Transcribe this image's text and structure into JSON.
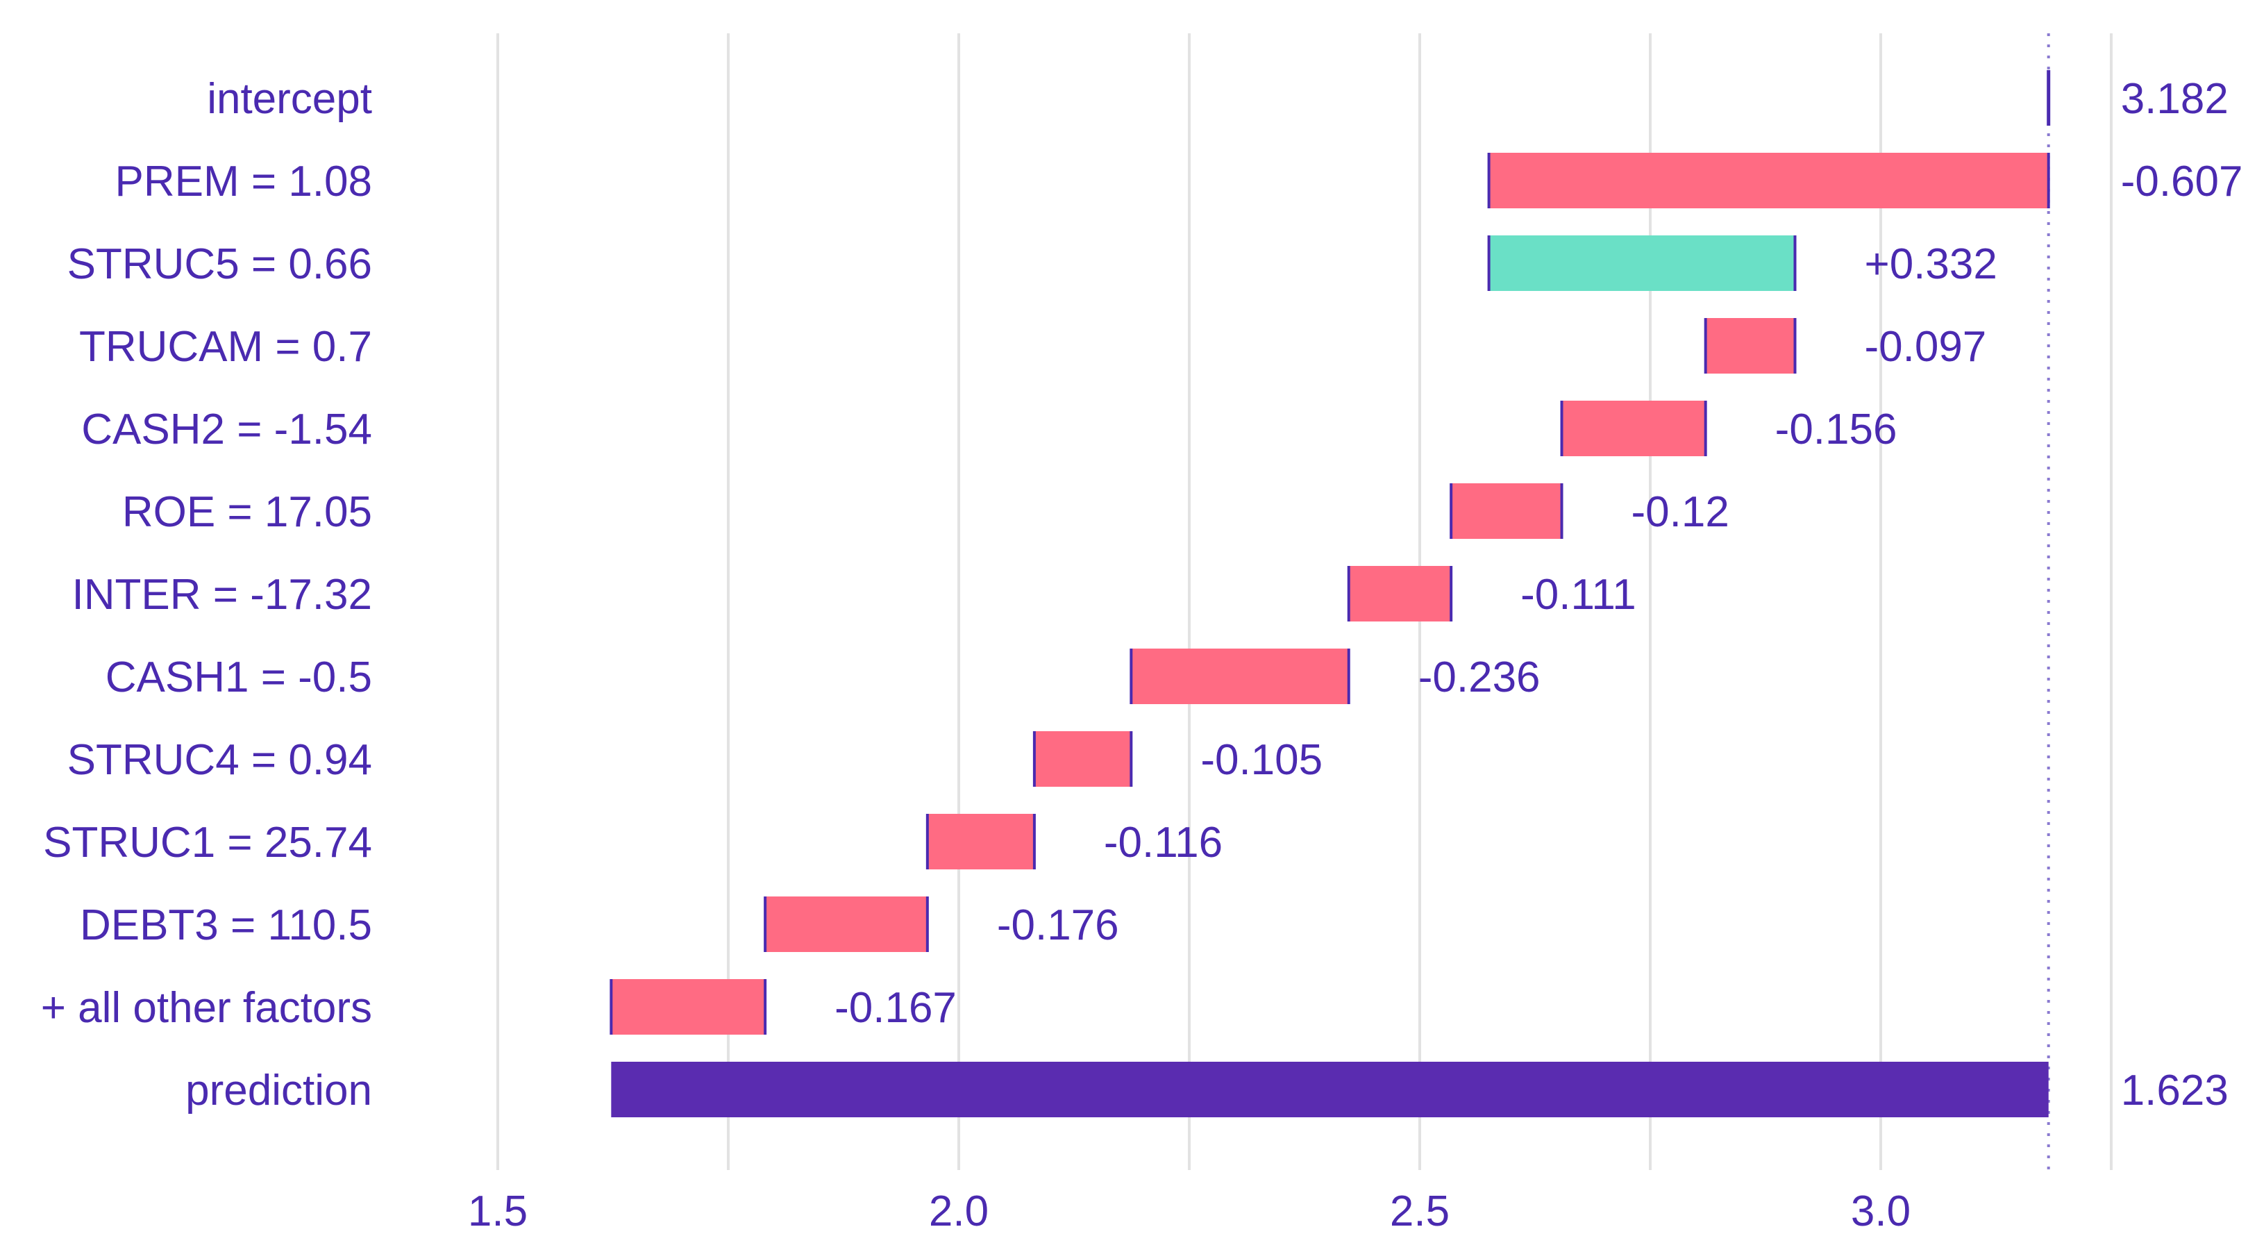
{
  "chart_data": {
    "type": "waterfall",
    "title": "",
    "xlabel": "",
    "ylabel": "",
    "xlim": [
      1.5,
      3.25
    ],
    "x_ticks": [
      1.5,
      2.0,
      2.5,
      3.0
    ],
    "x_tick_labels": [
      "1.5",
      "2.0",
      "2.5",
      "3.0"
    ],
    "intercept": 3.182,
    "prediction": 1.623,
    "rows": [
      {
        "label": "intercept",
        "kind": "intercept",
        "value": 3.182,
        "value_label": "3.182"
      },
      {
        "label": "PREM = 1.08",
        "kind": "contribution",
        "value": -0.607,
        "value_label": "-0.607"
      },
      {
        "label": "STRUC5 = 0.66",
        "kind": "contribution",
        "value": 0.332,
        "value_label": "+0.332"
      },
      {
        "label": "TRUCAM = 0.7",
        "kind": "contribution",
        "value": -0.097,
        "value_label": "-0.097"
      },
      {
        "label": "CASH2 = -1.54",
        "kind": "contribution",
        "value": -0.156,
        "value_label": "-0.156"
      },
      {
        "label": "ROE = 17.05",
        "kind": "contribution",
        "value": -0.12,
        "value_label": "-0.12"
      },
      {
        "label": "INTER = -17.32",
        "kind": "contribution",
        "value": -0.111,
        "value_label": "-0.111"
      },
      {
        "label": "CASH1 = -0.5",
        "kind": "contribution",
        "value": -0.236,
        "value_label": "-0.236"
      },
      {
        "label": "STRUC4 = 0.94",
        "kind": "contribution",
        "value": -0.105,
        "value_label": "-0.105"
      },
      {
        "label": "STRUC1 = 25.74",
        "kind": "contribution",
        "value": -0.116,
        "value_label": "-0.116"
      },
      {
        "label": "DEBT3 = 110.5",
        "kind": "contribution",
        "value": -0.176,
        "value_label": "-0.176"
      },
      {
        "label": "+ all other factors",
        "kind": "contribution",
        "value": -0.167,
        "value_label": "-0.167"
      },
      {
        "label": "prediction",
        "kind": "prediction",
        "value": 1.623,
        "value_label": "1.623"
      }
    ],
    "colors": {
      "positive": "#6ae0c6",
      "negative": "#ff6b83",
      "prediction": "#5a2cb0",
      "connector": "#4a2ab0",
      "text": "#4a2ab0",
      "grid": "#e2e2e2"
    }
  }
}
